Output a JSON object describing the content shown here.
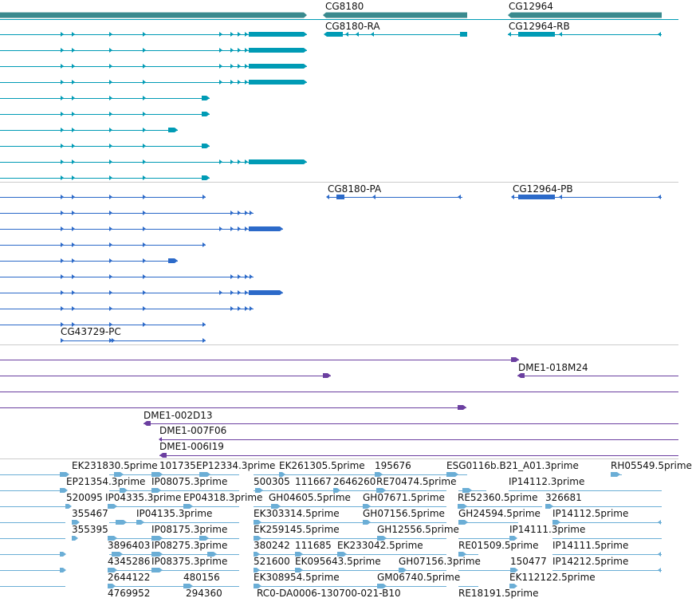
{
  "colors": {
    "gene": "#3a8a8e",
    "transcript": "#009bb5",
    "protein": "#2c6ac9",
    "clone": "#6b3fa0",
    "est": "#6baed6",
    "divider": "#cccccc"
  },
  "tracks": {
    "genes": {
      "labels": [
        "CG8180",
        "CG12964"
      ]
    },
    "transcripts": {
      "labels": [
        "CG8180-RA",
        "CG12964-RB"
      ]
    },
    "proteins": {
      "labels": [
        "CG8180-PA",
        "CG12964-PB",
        "CG43729-PC"
      ]
    },
    "clones": {
      "labels": [
        "DME1-018M24",
        "DME1-002D13",
        "DME1-007F06",
        "DME1-006I19"
      ]
    },
    "ests": {
      "labels": [
        "EK231830.5prime",
        "101735",
        "EP12334.3prime",
        "EK261305.5prime",
        "195676",
        "ESG0116b.B21_A01.3prime",
        "RH05549.5prime",
        "EP21354.3prime",
        "IP08075.3prime",
        "500305",
        "111667",
        "2646260",
        "RE70474.5prime",
        "IP14112.3prime",
        "520095",
        "IP04335.3prime",
        "EP04318.3prime",
        "GH04605.5prime",
        "GH07671.5prime",
        "RE52360.5prime",
        "326681",
        "355467",
        "IP04135.3prime",
        "EK303314.5prime",
        "GH07156.5prime",
        "GH24594.5prime",
        "IP14112.5prime",
        "355395",
        "IP08175.3prime",
        "EK259145.5prime",
        "GH12556.5prime",
        "IP14111.3prime",
        "3896403",
        "IP08275.3prime",
        "380242",
        "111685",
        "EK233042.5prime",
        "RE01509.5prime",
        "IP14111.5prime",
        "4345286",
        "IP08375.3prime",
        "521600",
        "EK095643.5prime",
        "GH07156.3prime",
        "150477",
        "IP14212.5prime",
        "2644122",
        "480156",
        "EK308954.5prime",
        "GM06740.5prime",
        "EK112122.5prime",
        "4769952",
        "294360",
        "RC0-DA0006-130700-021-B10",
        "RE18191.5prime"
      ]
    }
  }
}
